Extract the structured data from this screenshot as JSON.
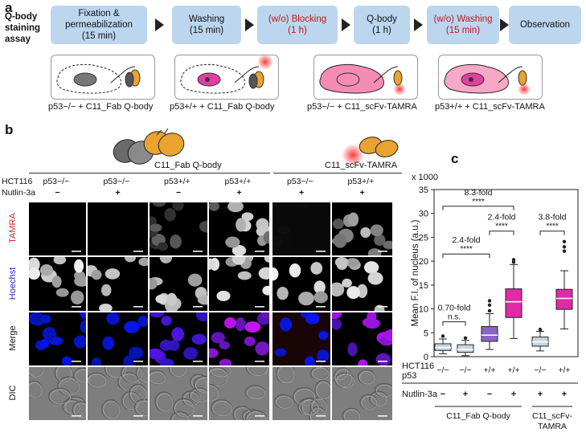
{
  "panel_a": {
    "letter": "a",
    "assay_label": [
      "Q-body",
      "staining",
      "assay"
    ],
    "steps": [
      {
        "lines": [
          "Fixation &",
          "permeabilization",
          "(15 min)"
        ],
        "red": false
      },
      {
        "lines": [
          "Washing",
          "(15 min)"
        ],
        "red": false
      },
      {
        "lines": [
          "(w/o) Blocking",
          "(1 h)"
        ],
        "red": true
      },
      {
        "lines": [
          "Q-body",
          "(1 h)"
        ],
        "red": false
      },
      {
        "lines": [
          "(w/o) Washing",
          "(15 min)"
        ],
        "red": true
      },
      {
        "lines": [
          "Observation"
        ],
        "red": false
      }
    ],
    "captions": [
      "p53−/− + C11_Fab Q-body",
      "p53+/+ + C11_Fab Q-body",
      "p53−/− + C11_scFv-TAMRA",
      "p53+/+ + C11_scFv-TAMRA"
    ]
  },
  "panel_b": {
    "letter": "b",
    "group_labels": [
      "C11_Fab Q-body",
      "C11_scFv-TAMRA"
    ],
    "hct_label": "HCT116",
    "nutlin_label": "Nutlin-3a",
    "columns": [
      {
        "genotype": "p53−/−",
        "nutlin": "−"
      },
      {
        "genotype": "p53−/−",
        "nutlin": "+"
      },
      {
        "genotype": "p53+/+",
        "nutlin": "−"
      },
      {
        "genotype": "p53+/+",
        "nutlin": "+"
      },
      {
        "genotype": "p53−/−",
        "nutlin": "+"
      },
      {
        "genotype": "p53+/+",
        "nutlin": "+"
      }
    ],
    "rows": [
      "TAMRA",
      "Hoechst",
      "Merge",
      "DIC"
    ]
  },
  "panel_c": {
    "letter": "c",
    "chart_data": {
      "type": "box",
      "ylabel": "Mean F.I. of nucleus (a.u.)",
      "y_multiplier": "x 1000",
      "ylim": [
        0,
        35
      ],
      "yticks": [
        0,
        5,
        10,
        15,
        20,
        25,
        30,
        35
      ],
      "hct_label": "HCT116",
      "p53_label": "p53",
      "nutlin_label": "Nutlin-3a",
      "groups": [
        {
          "genotype": "−/−",
          "nutlin": "−",
          "color": "#c8d6e0",
          "min": 0.6,
          "q1": 1.3,
          "median": 1.9,
          "q3": 2.7,
          "max": 3.7,
          "outliers": [
            4.3
          ]
        },
        {
          "genotype": "−/−",
          "nutlin": "+",
          "color": "#c8d6e0",
          "min": 0.2,
          "q1": 0.9,
          "median": 1.5,
          "q3": 2.5,
          "max": 3.4,
          "outliers": [
            3.9
          ]
        },
        {
          "genotype": "+/+",
          "nutlin": "−",
          "color": "#8a64c8",
          "min": 1.5,
          "q1": 3.2,
          "median": 4.5,
          "q3": 6.3,
          "max": 9.0,
          "outliers": [
            9.6,
            10.8,
            11.7
          ]
        },
        {
          "genotype": "+/+",
          "nutlin": "+",
          "color": "#e22aa7",
          "min": 3.8,
          "q1": 8.2,
          "median": 11.5,
          "q3": 14.2,
          "max": 19.3,
          "outliers": [
            19.8,
            20.3
          ]
        },
        {
          "genotype": "−/−",
          "nutlin": "+",
          "color": "#c8d6e0",
          "min": 1.2,
          "q1": 2.2,
          "median": 3.1,
          "q3": 4.1,
          "max": 5.3,
          "outliers": [
            5.7
          ]
        },
        {
          "genotype": "+/+",
          "nutlin": "+",
          "color": "#e22aa7",
          "min": 5.8,
          "q1": 9.9,
          "median": 12.2,
          "q3": 14.1,
          "max": 18.0,
          "outliers": [
            22.1,
            23.0,
            24.1
          ]
        }
      ],
      "comparisons": [
        {
          "from": 0,
          "to": 1,
          "fold": "0.70-fold",
          "sig": "n.s."
        },
        {
          "from": 0,
          "to": 2,
          "fold": "2.4-fold",
          "sig": "****"
        },
        {
          "from": 2,
          "to": 3,
          "fold": "2.4-fold",
          "sig": "****"
        },
        {
          "from": 0,
          "to": 3,
          "fold": "8.3-fold",
          "sig": "****"
        },
        {
          "from": 4,
          "to": 5,
          "fold": "3.8-fold",
          "sig": "****"
        }
      ],
      "group_labels": [
        "C11_Fab Q-body",
        "C11_scFv-TAMRA"
      ]
    }
  }
}
